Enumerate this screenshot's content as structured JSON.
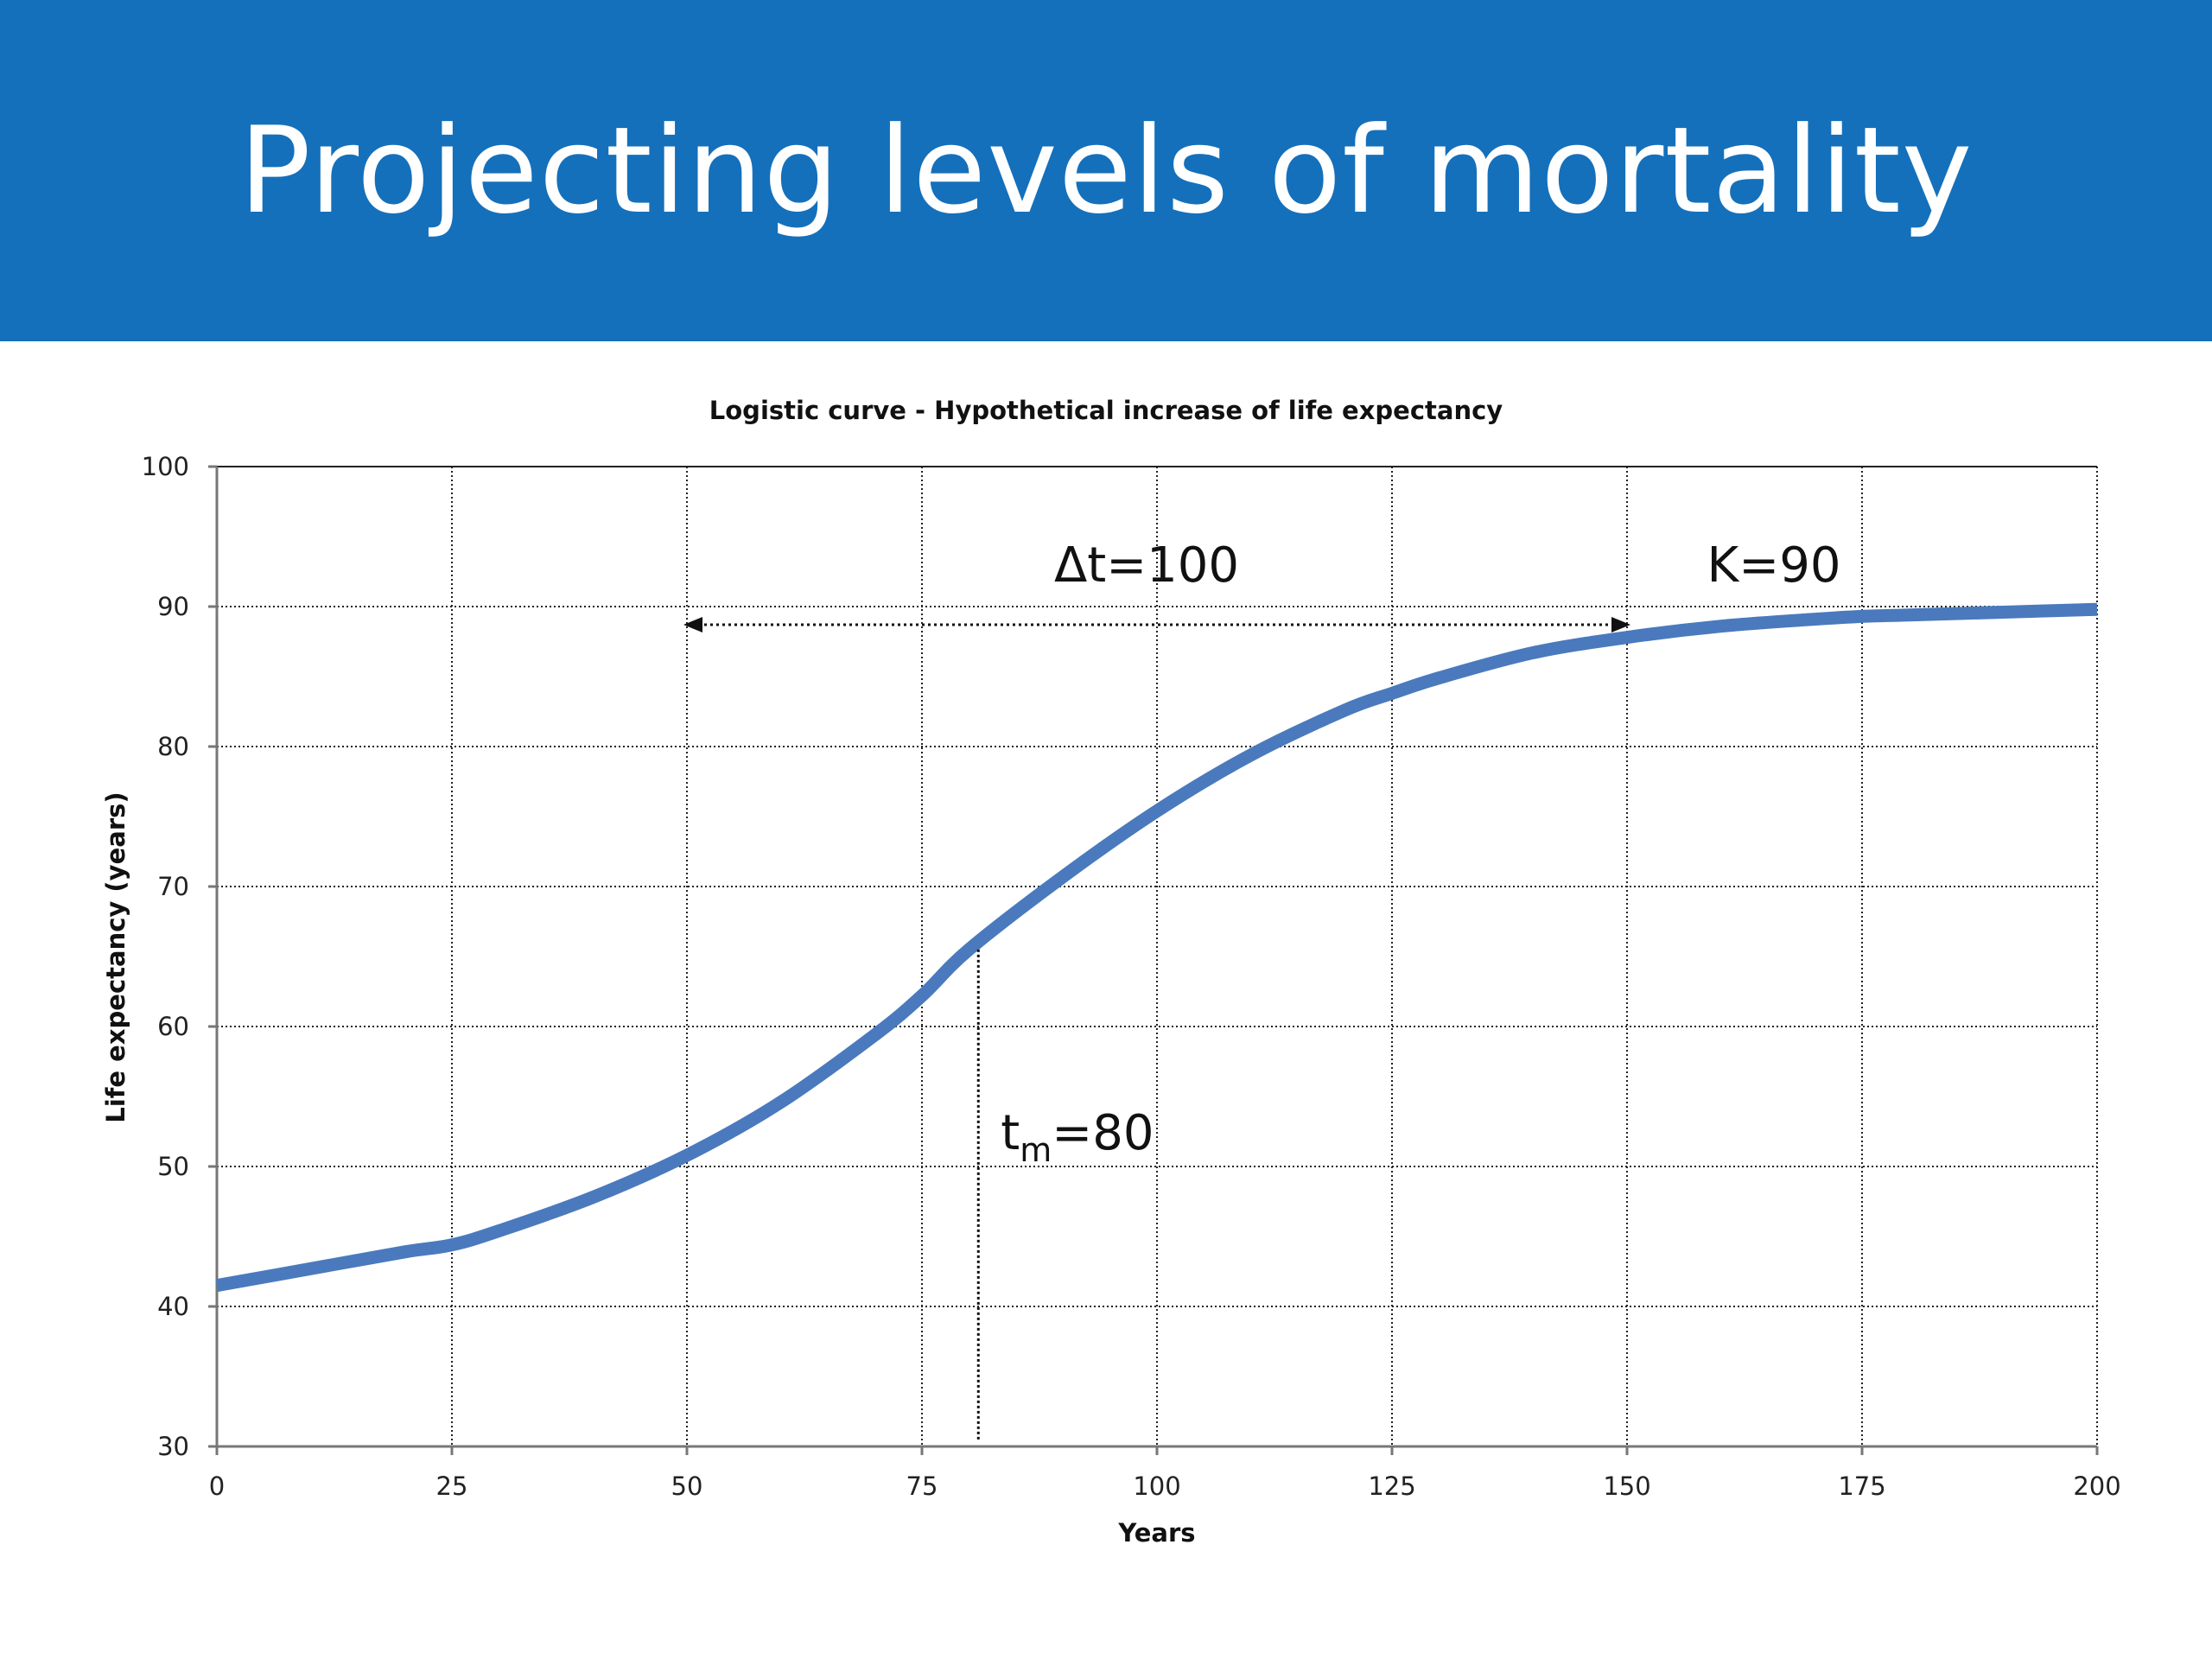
{
  "slide": {
    "title": "Projecting levels of mortality"
  },
  "colors": {
    "title_bar": "#1570bb",
    "title_text": "#ffffff",
    "series": "#4a7abd",
    "grid": "#222222"
  },
  "chart_data": {
    "type": "line",
    "title": "Logistic curve - Hypothetical increase of life expectancy",
    "xlabel": "Years",
    "ylabel": "Life expectancy (years)",
    "xlim": [
      0,
      200
    ],
    "ylim": [
      30,
      100
    ],
    "xticks": [
      0,
      25,
      50,
      75,
      100,
      125,
      150,
      175,
      200
    ],
    "yticks": [
      30,
      40,
      50,
      60,
      70,
      80,
      90,
      100
    ],
    "grid": true,
    "grid_style": "dotted",
    "legend": "none",
    "series": [
      {
        "x": [
          0,
          10,
          20,
          25,
          30,
          40,
          50,
          60,
          70,
          75,
          80,
          90,
          100,
          110,
          120,
          125,
          130,
          140,
          150,
          160,
          170,
          175,
          180,
          190,
          200
        ],
        "y": [
          41.5,
          42.7,
          43.9,
          44.4,
          45.4,
          47.8,
          50.8,
          54.6,
          59.4,
          62.2,
          65.5,
          70.7,
          75.4,
          79.4,
          82.6,
          83.8,
          84.9,
          86.7,
          87.8,
          88.6,
          89.1,
          89.3,
          89.4,
          89.6,
          89.8
        ]
      }
    ],
    "annotations": {
      "delta_t": {
        "label": "Δt=100",
        "arrow_from_x": 50,
        "arrow_to_x": 150,
        "arrow_y": 88.7
      },
      "k": {
        "label": "K=90"
      },
      "tm": {
        "prefix": "t",
        "subscript": "m",
        "suffix": "=80",
        "x": 81,
        "line_top_y": 65.5
      }
    }
  }
}
